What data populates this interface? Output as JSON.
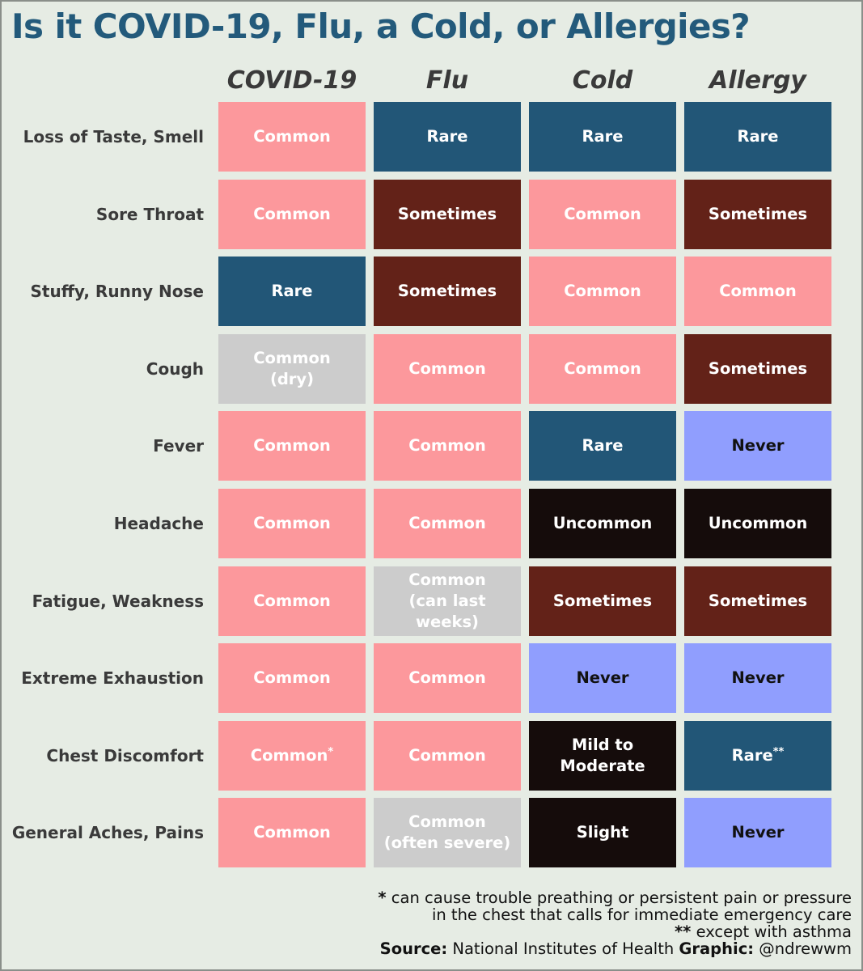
{
  "title": "Is it COVID-19, Flu, a Cold, or Allergies?",
  "chart_data": {
    "type": "table",
    "columns": [
      "COVID-19",
      "Flu",
      "Cold",
      "Allergy"
    ],
    "rows": [
      {
        "symptom": "Loss of Taste, Smell",
        "values": [
          "Common",
          "Rare",
          "Rare",
          "Rare"
        ]
      },
      {
        "symptom": "Sore Throat",
        "values": [
          "Common",
          "Sometimes",
          "Common",
          "Sometimes"
        ]
      },
      {
        "symptom": "Stuffy, Runny Nose",
        "values": [
          "Rare",
          "Sometimes",
          "Common",
          "Common"
        ]
      },
      {
        "symptom": "Cough",
        "values": [
          "Common\n(dry)",
          "Common",
          "Common",
          "Sometimes"
        ]
      },
      {
        "symptom": "Fever",
        "values": [
          "Common",
          "Common",
          "Rare",
          "Never"
        ]
      },
      {
        "symptom": "Headache",
        "values": [
          "Common",
          "Common",
          "Uncommon",
          "Uncommon"
        ]
      },
      {
        "symptom": "Fatigue, Weakness",
        "values": [
          "Common",
          "Common\n(can last weeks)",
          "Sometimes",
          "Sometimes"
        ]
      },
      {
        "symptom": "Extreme Exhaustion",
        "values": [
          "Common",
          "Common",
          "Never",
          "Never"
        ]
      },
      {
        "symptom": "Chest Discomfort",
        "values": [
          "Common*",
          "Common",
          "Mild to\nModerate",
          "Rare**"
        ]
      },
      {
        "symptom": "General Aches, Pains",
        "values": [
          "Common",
          "Common\n(often severe)",
          "Slight",
          "Never"
        ]
      }
    ],
    "category_colors": {
      "Common": "#fc989c",
      "Rare": "#225677",
      "Sometimes": "#632218",
      "Never": "#909efe",
      "Uncommon": "#150c0b",
      "Mild to\nModerate": "#150c0b",
      "Slight": "#150c0b"
    },
    "text_colors": {
      "Never": "#111111",
      "default": "#ffffff"
    }
  },
  "footnotes": {
    "note1_marker": "*",
    "note1_line1": " can cause trouble preathing or persistent pain or pressure",
    "note1_line2": "in the chest that calls for immediate emergency care",
    "note2_marker": "**",
    "note2_text": " except with asthma",
    "source_label": "Source:",
    "source_text": " National Institutes of Health ",
    "graphic_label": "Graphic:",
    "graphic_text": " @ndrewwm"
  }
}
